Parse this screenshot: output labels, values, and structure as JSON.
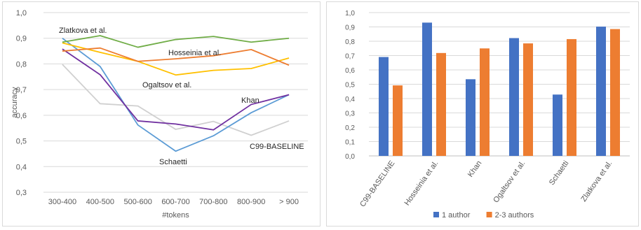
{
  "chart_data": [
    {
      "type": "line",
      "title": "",
      "xlabel": "#tokens",
      "ylabel": "accuracy",
      "categories": [
        "300-400",
        "400-500",
        "500-600",
        "600-700",
        "700-800",
        "800-900",
        "> 900"
      ],
      "ylim": [
        0.3,
        1.0
      ],
      "yticks": [
        "0,3",
        "0,4",
        "0,5",
        "0,6",
        "0,7",
        "0,8",
        "0,9",
        "1,0"
      ],
      "grid": true,
      "series": [
        {
          "name": "Zlatkova et al.",
          "color": "#70ad47",
          "values": [
            0.885,
            0.91,
            0.865,
            0.895,
            0.907,
            0.885,
            0.9
          ]
        },
        {
          "name": "Hosseinia et al.",
          "color": "#ed7d31",
          "values": [
            0.85,
            0.862,
            0.81,
            0.82,
            0.832,
            0.856,
            0.795
          ]
        },
        {
          "name": "Ogaltsov et al.",
          "color": "#ffc000",
          "values": [
            0.882,
            0.845,
            0.81,
            0.757,
            0.775,
            0.782,
            0.823
          ]
        },
        {
          "name": "Khan",
          "color": "#7030a0",
          "values": [
            0.858,
            0.758,
            0.578,
            0.566,
            0.543,
            0.642,
            0.68
          ]
        },
        {
          "name": "Schaetti",
          "color": "#5b9bd5",
          "values": [
            0.9,
            0.79,
            0.562,
            0.46,
            0.52,
            0.61,
            0.68
          ]
        },
        {
          "name": "C99-BASELINE",
          "color": "#d0d0d0",
          "values": [
            0.798,
            0.645,
            0.636,
            0.545,
            0.576,
            0.522,
            0.578
          ]
        }
      ]
    },
    {
      "type": "bar",
      "title": "",
      "categories": [
        "C99-BASELINE",
        "Hosseinia et al.",
        "Khan",
        "Ogaltsov et al.",
        "Schaetti",
        "Zlatkova et al."
      ],
      "ylim": [
        0.0,
        1.0
      ],
      "yticks": [
        "0,0",
        "0,1",
        "0,2",
        "0,3",
        "0,4",
        "0,5",
        "0,6",
        "0,7",
        "0,8",
        "0,9",
        "1,0"
      ],
      "grid": true,
      "legend": "bottom",
      "series": [
        {
          "name": "1 author",
          "color": "#4472c4",
          "values": [
            0.69,
            0.93,
            0.535,
            0.822,
            0.428,
            0.902
          ]
        },
        {
          "name": "2-3 authors",
          "color": "#ed7d31",
          "values": [
            0.492,
            0.718,
            0.75,
            0.785,
            0.815,
            0.885
          ]
        }
      ]
    }
  ]
}
